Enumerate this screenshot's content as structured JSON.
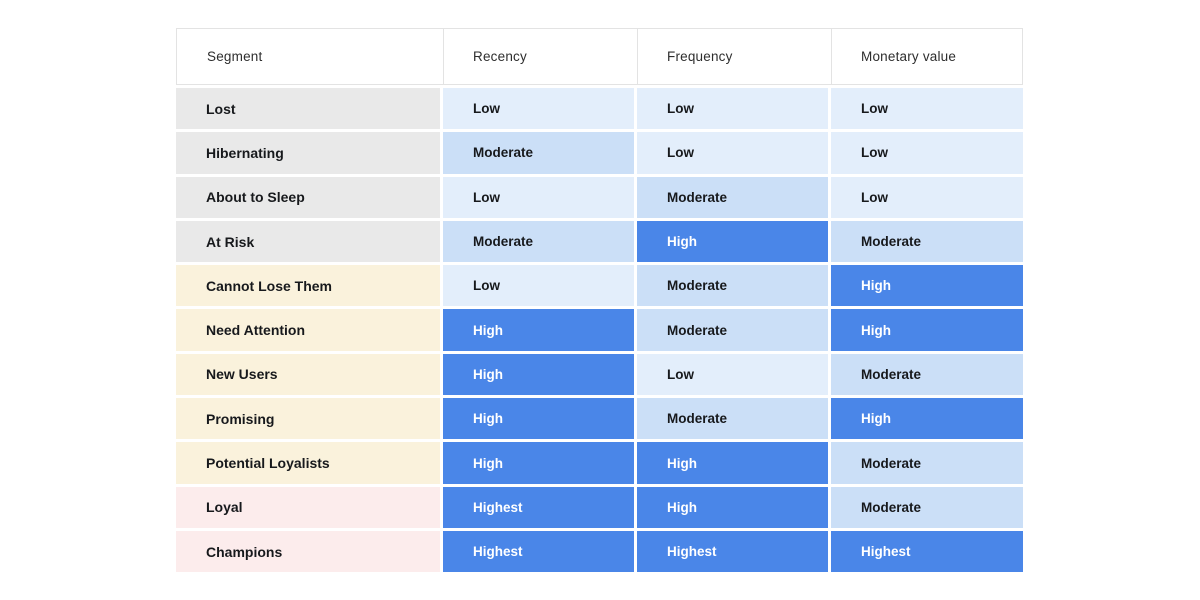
{
  "table": {
    "columns": [
      {
        "key": "segment",
        "label": "Segment"
      },
      {
        "key": "recency",
        "label": "Recency"
      },
      {
        "key": "frequency",
        "label": "Frequency"
      },
      {
        "key": "monetary",
        "label": "Monetary value"
      }
    ],
    "rows": [
      {
        "segment": "Lost",
        "group": "gray",
        "recency": "Low",
        "frequency": "Low",
        "monetary": "Low"
      },
      {
        "segment": "Hibernating",
        "group": "gray",
        "recency": "Moderate",
        "frequency": "Low",
        "monetary": "Low"
      },
      {
        "segment": "About to Sleep",
        "group": "gray",
        "recency": "Low",
        "frequency": "Moderate",
        "monetary": "Low"
      },
      {
        "segment": "At Risk",
        "group": "gray",
        "recency": "Moderate",
        "frequency": "High",
        "monetary": "Moderate"
      },
      {
        "segment": "Cannot Lose Them",
        "group": "cream",
        "recency": "Low",
        "frequency": "Moderate",
        "monetary": "High"
      },
      {
        "segment": "Need Attention",
        "group": "cream",
        "recency": "High",
        "frequency": "Moderate",
        "monetary": "High"
      },
      {
        "segment": "New Users",
        "group": "cream",
        "recency": "High",
        "frequency": "Low",
        "monetary": "Moderate"
      },
      {
        "segment": "Promising",
        "group": "cream",
        "recency": "High",
        "frequency": "Moderate",
        "monetary": "High"
      },
      {
        "segment": "Potential Loyalists",
        "group": "cream",
        "recency": "High",
        "frequency": "High",
        "monetary": "Moderate"
      },
      {
        "segment": "Loyal",
        "group": "pink",
        "recency": "Highest",
        "frequency": "High",
        "monetary": "Moderate"
      },
      {
        "segment": "Champions",
        "group": "pink",
        "recency": "Highest",
        "frequency": "Highest",
        "monetary": "Highest"
      }
    ]
  },
  "palette": {
    "low": "#e3eefb",
    "moderate": "#cbdff7",
    "high": "#4a86e8",
    "highest": "#4a86e8",
    "segment_gray": "#e9e9e9",
    "segment_cream": "#faf2dc",
    "segment_pink": "#fcecec",
    "text_dark": "#17191c",
    "text_light": "#ffffff",
    "header_text": "#2e2e2e",
    "header_border": "#e3e3e3"
  },
  "chart_data": {
    "type": "table",
    "columns": [
      "Segment",
      "Recency",
      "Frequency",
      "Monetary value"
    ],
    "rows": [
      [
        "Lost",
        "Low",
        "Low",
        "Low"
      ],
      [
        "Hibernating",
        "Moderate",
        "Low",
        "Low"
      ],
      [
        "About to Sleep",
        "Low",
        "Moderate",
        "Low"
      ],
      [
        "At Risk",
        "Moderate",
        "High",
        "Moderate"
      ],
      [
        "Cannot Lose Them",
        "Low",
        "Moderate",
        "High"
      ],
      [
        "Need Attention",
        "High",
        "Moderate",
        "High"
      ],
      [
        "New Users",
        "High",
        "Low",
        "Moderate"
      ],
      [
        "Promising",
        "High",
        "Moderate",
        "High"
      ],
      [
        "Potential Loyalists",
        "High",
        "High",
        "Moderate"
      ],
      [
        "Loyal",
        "Highest",
        "High",
        "Moderate"
      ],
      [
        "Champions",
        "Highest",
        "Highest",
        "Highest"
      ]
    ],
    "value_scale": [
      "Low",
      "Moderate",
      "High",
      "Highest"
    ],
    "value_colors": {
      "Low": "#e3eefb",
      "Moderate": "#cbdff7",
      "High": "#4a86e8",
      "Highest": "#4a86e8"
    },
    "segment_group_colors": {
      "gray": "#e9e9e9",
      "cream": "#faf2dc",
      "pink": "#fcecec"
    },
    "grid": false,
    "legend": false
  }
}
